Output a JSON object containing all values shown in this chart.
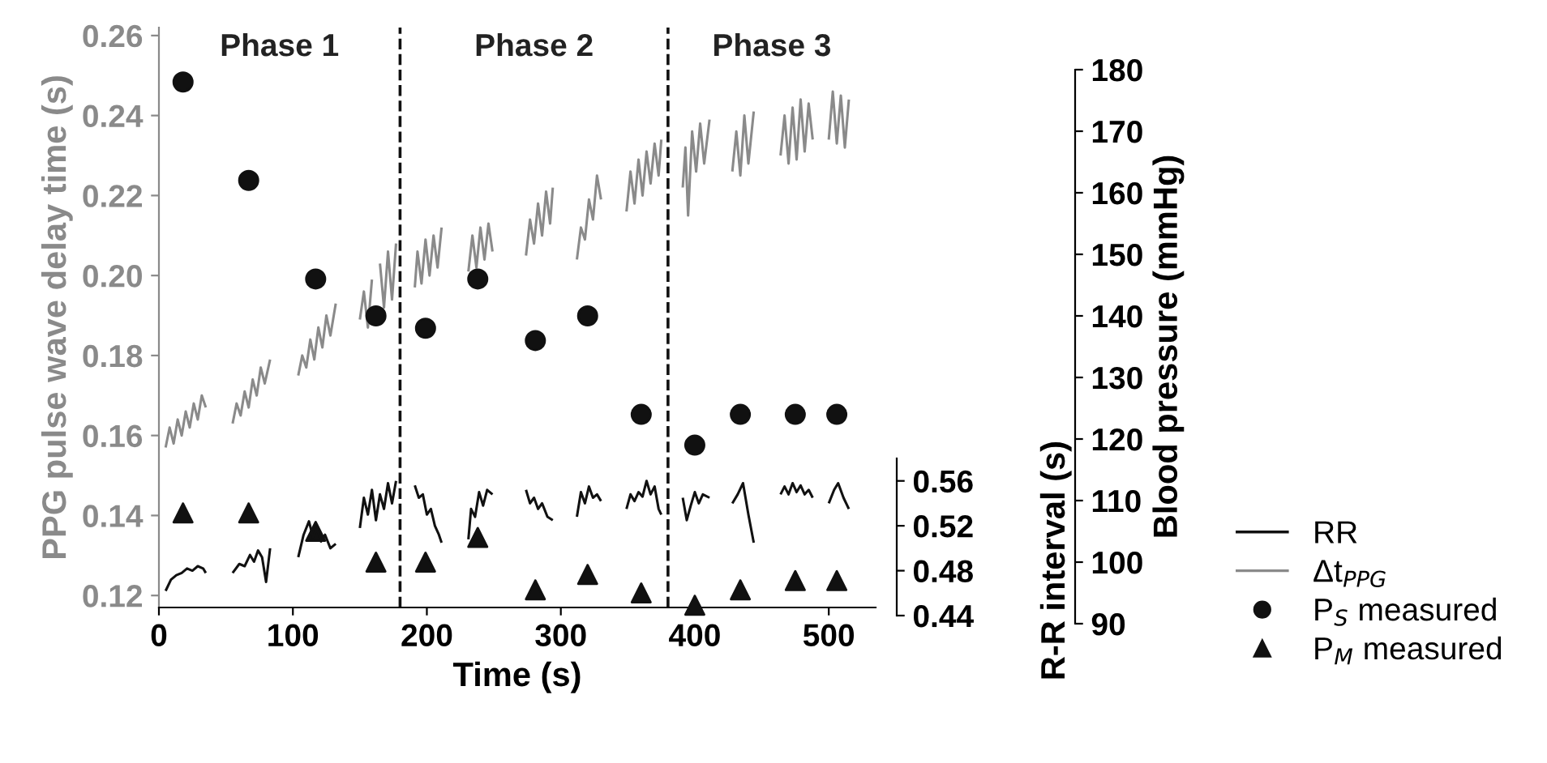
{
  "chart_data": {
    "type": "line",
    "xlabel": "Time (s)",
    "ylabel": "PPG pulse wave delay time (s)",
    "y2label": "Blood pressure (mmHg)",
    "y3label": "R-R interval (s)",
    "xlim": [
      0,
      535
    ],
    "xticks": [
      0,
      100,
      200,
      300,
      400,
      500
    ],
    "ylim": [
      0.117,
      0.262
    ],
    "yticks": [
      0.12,
      0.14,
      0.16,
      0.18,
      {
        "value": 0.2,
        "label": "0.20"
      },
      0.22,
      0.24,
      0.26
    ],
    "y2lim": [
      90,
      180
    ],
    "y2ticks": [
      90,
      100,
      110,
      120,
      130,
      140,
      150,
      160,
      170,
      180
    ],
    "y3lim": [
      0.44,
      0.58
    ],
    "y3ticks": [
      0.44,
      0.48,
      0.52,
      0.56
    ],
    "grid": false,
    "legend": "bottom right",
    "ref_lines": [
      {
        "axis": "x",
        "value": 180,
        "line_style": "dashed",
        "color": "#111111"
      },
      {
        "axis": "x",
        "value": 380,
        "line_style": "dashed",
        "color": "#111111"
      }
    ],
    "annotations": [
      "Phase 1",
      "Phase 2",
      "Phase 3"
    ],
    "series": [
      {
        "name": "RR",
        "axis": "y3",
        "color": "#111111",
        "marker": "none",
        "line_style": "solid",
        "x": [
          5,
          9,
          13,
          17,
          21,
          25,
          29,
          33,
          35,
          45,
          55,
          60,
          64,
          68,
          71,
          74,
          77,
          80,
          83,
          93,
          104,
          108,
          112,
          115,
          118,
          121,
          124,
          128,
          132,
          141,
          150,
          153,
          156,
          159,
          162,
          165,
          168,
          171,
          174,
          177,
          184,
          191,
          194,
          197,
          200,
          203,
          206,
          209,
          211,
          221,
          231,
          233,
          236,
          239,
          242,
          245,
          249,
          261,
          274,
          277,
          280,
          283,
          286,
          290,
          294,
          303,
          312,
          315,
          318,
          321,
          324,
          327,
          330,
          340,
          349,
          352,
          355,
          358,
          361,
          364,
          367,
          370,
          373,
          375,
          383,
          391,
          394,
          397,
          400,
          403,
          406,
          411,
          420,
          428,
          432,
          436,
          440,
          444,
          454,
          464,
          467,
          470,
          473,
          476,
          479,
          482,
          485,
          488,
          494,
          500,
          504,
          507,
          511,
          515
        ],
        "values": [
          0.462,
          0.472,
          0.476,
          0.478,
          0.482,
          0.48,
          0.484,
          0.482,
          0.478,
          null,
          0.478,
          0.486,
          0.484,
          0.494,
          0.488,
          0.498,
          0.492,
          0.47,
          0.5,
          null,
          0.492,
          0.512,
          0.524,
          0.51,
          0.518,
          0.506,
          0.512,
          0.5,
          0.504,
          null,
          0.518,
          0.545,
          0.53,
          0.552,
          0.525,
          0.548,
          0.535,
          0.558,
          0.54,
          0.56,
          null,
          0.556,
          0.545,
          0.548,
          0.53,
          0.535,
          0.52,
          0.512,
          0.505,
          null,
          0.508,
          0.535,
          0.528,
          0.55,
          0.538,
          0.552,
          0.548,
          null,
          0.552,
          0.54,
          0.545,
          0.535,
          0.54,
          0.528,
          0.525,
          null,
          0.528,
          0.55,
          0.54,
          0.555,
          0.545,
          0.548,
          0.542,
          null,
          0.535,
          0.548,
          0.542,
          0.55,
          0.546,
          0.56,
          0.548,
          0.555,
          0.535,
          0.53,
          null,
          0.545,
          0.525,
          0.538,
          0.55,
          0.54,
          0.548,
          0.545,
          null,
          0.54,
          0.548,
          0.558,
          0.53,
          0.505,
          null,
          0.548,
          0.555,
          0.548,
          0.558,
          0.55,
          0.556,
          0.548,
          0.552,
          0.545,
          null,
          0.54,
          0.552,
          0.558,
          0.545,
          0.535
        ]
      },
      {
        "name": "Δt$_{PPG}$",
        "axis": "y",
        "color": "#8a8a8a",
        "marker": "none",
        "line_style": "solid",
        "x": [
          5,
          8,
          11,
          14,
          17,
          20,
          23,
          26,
          29,
          32,
          35,
          45,
          55,
          58,
          61,
          64,
          67,
          70,
          73,
          76,
          79,
          83,
          93,
          104,
          107,
          110,
          113,
          116,
          119,
          122,
          125,
          128,
          132,
          141,
          150,
          153,
          156,
          159,
          162,
          165,
          168,
          171,
          174,
          177,
          184,
          191,
          193,
          196,
          199,
          202,
          205,
          208,
          211,
          221,
          231,
          234,
          237,
          240,
          243,
          246,
          249,
          261,
          274,
          277,
          280,
          283,
          286,
          289,
          292,
          294,
          303,
          312,
          315,
          318,
          321,
          324,
          327,
          330,
          340,
          349,
          352,
          355,
          358,
          361,
          364,
          367,
          370,
          373,
          375,
          383,
          391,
          393,
          395,
          398,
          401,
          404,
          407,
          411,
          420,
          428,
          431,
          434,
          437,
          440,
          444,
          454,
          464,
          467,
          470,
          473,
          476,
          479,
          482,
          485,
          488,
          494,
          500,
          503,
          506,
          509,
          512,
          515
        ],
        "values": [
          0.157,
          0.162,
          0.158,
          0.164,
          0.16,
          0.166,
          0.162,
          0.168,
          0.164,
          0.17,
          0.167,
          null,
          0.163,
          0.168,
          0.165,
          0.171,
          0.167,
          0.174,
          0.17,
          0.177,
          0.173,
          0.179,
          null,
          0.175,
          0.18,
          0.177,
          0.184,
          0.179,
          0.187,
          0.182,
          0.19,
          0.185,
          0.193,
          null,
          0.189,
          0.196,
          0.187,
          0.199,
          null,
          0.203,
          0.192,
          0.206,
          0.194,
          0.208,
          null,
          0.197,
          0.206,
          0.198,
          0.209,
          0.2,
          0.21,
          0.202,
          0.212,
          null,
          0.201,
          0.21,
          0.202,
          0.212,
          0.204,
          0.213,
          0.206,
          null,
          0.205,
          0.214,
          0.208,
          0.218,
          0.21,
          0.221,
          0.213,
          0.222,
          null,
          0.204,
          0.212,
          0.209,
          0.219,
          0.214,
          0.225,
          0.219,
          null,
          0.216,
          0.226,
          0.218,
          0.229,
          0.22,
          0.231,
          0.223,
          0.233,
          0.225,
          0.234,
          null,
          0.222,
          0.232,
          0.215,
          0.236,
          0.226,
          0.238,
          0.228,
          0.239,
          null,
          0.226,
          0.236,
          0.225,
          0.24,
          0.228,
          0.241,
          null,
          0.23,
          0.24,
          0.228,
          0.242,
          0.229,
          0.244,
          0.231,
          0.243,
          0.234,
          null,
          0.234,
          0.246,
          0.233,
          0.245,
          0.232,
          0.244
        ]
      },
      {
        "name": "P$_{S}$ measured",
        "type": "scatter",
        "axis": "y2",
        "color": "#111111",
        "marker": "circle",
        "x": [
          18,
          67,
          117,
          162,
          199,
          238,
          281,
          320,
          360,
          400,
          434,
          475,
          506
        ],
        "values": [
          178,
          162,
          146,
          140,
          138,
          146,
          136,
          140,
          124,
          119,
          124,
          124,
          124
        ]
      },
      {
        "name": "P$_{M}$ measured",
        "type": "scatter",
        "axis": "y2",
        "color": "#111111",
        "marker": "triangle",
        "x": [
          18,
          67,
          117,
          162,
          199,
          238,
          281,
          320,
          360,
          400,
          434,
          475,
          506
        ],
        "values": [
          108,
          108,
          105,
          100,
          100,
          104,
          95.5,
          98,
          95,
          93,
          95.5,
          97,
          97
        ]
      }
    ]
  }
}
